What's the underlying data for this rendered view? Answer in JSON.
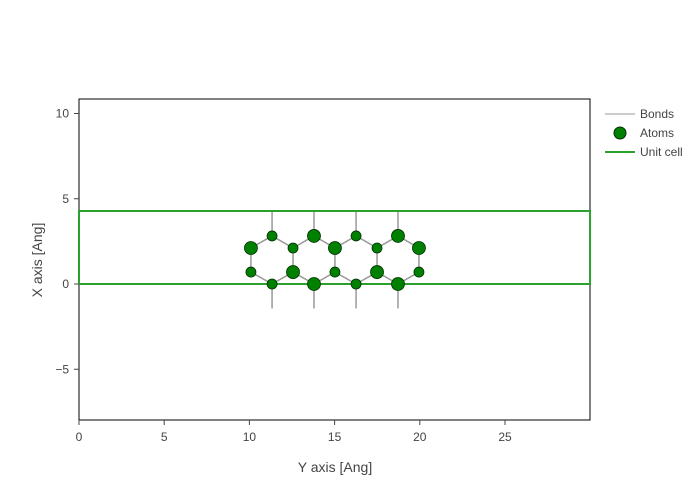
{
  "chart_data": {
    "type": "scatter",
    "title": "",
    "xlabel": "Y axis [Ang]",
    "ylabel": "X axis [Ang]",
    "xlim": [
      0,
      29.99
    ],
    "ylim": [
      -8,
      10.8
    ],
    "xticks": [
      0,
      5,
      10,
      15,
      20,
      25
    ],
    "yticks": [
      10,
      5,
      0,
      -5
    ],
    "xtick_labels": [
      "0",
      "5",
      "10",
      "15",
      "20",
      "25"
    ],
    "ytick_labels": [
      "10",
      "5",
      "0",
      "−5"
    ],
    "grid": false,
    "legend_position": "right",
    "legend": [
      {
        "name": "Bonds",
        "type": "line",
        "color": "#999999"
      },
      {
        "name": "Atoms",
        "type": "marker",
        "color": "#008000"
      },
      {
        "name": "Unit cell",
        "type": "line",
        "color": "#2ca02c"
      }
    ],
    "series": [
      {
        "name": "Atoms",
        "color": "#008000",
        "points": [
          {
            "x": 10.09,
            "y": 2.11,
            "size": "large"
          },
          {
            "x": 10.09,
            "y": 0.7,
            "size": "small"
          },
          {
            "x": 11.33,
            "y": 2.82,
            "size": "small"
          },
          {
            "x": 11.33,
            "y": 0.0,
            "size": "small"
          },
          {
            "x": 12.56,
            "y": 2.11,
            "size": "small"
          },
          {
            "x": 12.56,
            "y": 0.7,
            "size": "large"
          },
          {
            "x": 13.79,
            "y": 2.82,
            "size": "large"
          },
          {
            "x": 13.79,
            "y": 0.0,
            "size": "large"
          },
          {
            "x": 15.02,
            "y": 2.11,
            "size": "large"
          },
          {
            "x": 15.02,
            "y": 0.7,
            "size": "small"
          },
          {
            "x": 16.26,
            "y": 2.82,
            "size": "small"
          },
          {
            "x": 16.26,
            "y": 0.0,
            "size": "small"
          },
          {
            "x": 17.49,
            "y": 2.11,
            "size": "small"
          },
          {
            "x": 17.49,
            "y": 0.7,
            "size": "large"
          },
          {
            "x": 18.72,
            "y": 2.82,
            "size": "large"
          },
          {
            "x": 18.72,
            "y": 0.0,
            "size": "large"
          },
          {
            "x": 19.95,
            "y": 2.11,
            "size": "large"
          },
          {
            "x": 19.95,
            "y": 0.7,
            "size": "small"
          }
        ]
      },
      {
        "name": "Bonds",
        "color": "#999999",
        "segments": [
          [
            [
              10.09,
              2.11
            ],
            [
              11.33,
              2.82
            ]
          ],
          [
            [
              11.33,
              2.82
            ],
            [
              12.56,
              2.11
            ]
          ],
          [
            [
              12.56,
              2.11
            ],
            [
              13.79,
              2.82
            ]
          ],
          [
            [
              13.79,
              2.82
            ],
            [
              15.02,
              2.11
            ]
          ],
          [
            [
              15.02,
              2.11
            ],
            [
              16.26,
              2.82
            ]
          ],
          [
            [
              16.26,
              2.82
            ],
            [
              17.49,
              2.11
            ]
          ],
          [
            [
              17.49,
              2.11
            ],
            [
              18.72,
              2.82
            ]
          ],
          [
            [
              18.72,
              2.82
            ],
            [
              19.95,
              2.11
            ]
          ],
          [
            [
              10.09,
              0.7
            ],
            [
              11.33,
              0.0
            ]
          ],
          [
            [
              11.33,
              0.0
            ],
            [
              12.56,
              0.7
            ]
          ],
          [
            [
              12.56,
              0.7
            ],
            [
              13.79,
              0.0
            ]
          ],
          [
            [
              13.79,
              0.0
            ],
            [
              15.02,
              0.7
            ]
          ],
          [
            [
              15.02,
              0.7
            ],
            [
              16.26,
              0.0
            ]
          ],
          [
            [
              16.26,
              0.0
            ],
            [
              17.49,
              0.7
            ]
          ],
          [
            [
              17.49,
              0.7
            ],
            [
              18.72,
              0.0
            ]
          ],
          [
            [
              18.72,
              0.0
            ],
            [
              19.95,
              0.7
            ]
          ],
          [
            [
              10.09,
              2.11
            ],
            [
              10.09,
              0.7
            ]
          ],
          [
            [
              12.56,
              2.11
            ],
            [
              12.56,
              0.7
            ]
          ],
          [
            [
              15.02,
              2.11
            ],
            [
              15.02,
              0.7
            ]
          ],
          [
            [
              17.49,
              2.11
            ],
            [
              17.49,
              0.7
            ]
          ],
          [
            [
              19.95,
              2.11
            ],
            [
              19.95,
              0.7
            ]
          ],
          [
            [
              11.33,
              2.82
            ],
            [
              11.33,
              4.28
            ]
          ],
          [
            [
              13.79,
              2.82
            ],
            [
              13.79,
              4.28
            ]
          ],
          [
            [
              16.26,
              2.82
            ],
            [
              16.26,
              4.28
            ]
          ],
          [
            [
              18.72,
              2.82
            ],
            [
              18.72,
              4.28
            ]
          ],
          [
            [
              11.33,
              0.0
            ],
            [
              11.33,
              -1.43
            ]
          ],
          [
            [
              13.79,
              0.0
            ],
            [
              13.79,
              -1.43
            ]
          ],
          [
            [
              16.26,
              0.0
            ],
            [
              16.26,
              -1.43
            ]
          ],
          [
            [
              18.72,
              0.0
            ],
            [
              18.72,
              -1.43
            ]
          ]
        ]
      },
      {
        "name": "Unit cell",
        "color": "#2ca02c",
        "polygon": [
          [
            0,
            0
          ],
          [
            29.99,
            0
          ],
          [
            29.99,
            4.28
          ],
          [
            0,
            4.28
          ],
          [
            0,
            0
          ]
        ]
      }
    ]
  }
}
